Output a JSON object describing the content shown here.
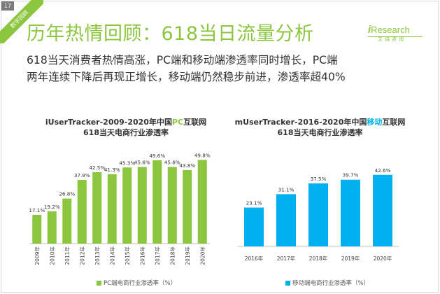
{
  "page": {
    "number": "17",
    "corner_tag": "数字回顾",
    "title": "历年热情回顾：618当日流量分析",
    "subtitle_lines": [
      "618当天消费者热情高涨，PC端和移动端渗透率同时增长，PC端",
      "两年连续下降后再现正增长，移动端仍然稳步前进，渗透率超40%"
    ]
  },
  "logo": {
    "text_prefix": "i",
    "text_main": "Research",
    "text_cn": "艾瑞咨询"
  },
  "colors": {
    "green": "#8cc63f",
    "blue": "#00b0f0",
    "title_green": "#8cc63f"
  },
  "chart_data": [
    {
      "type": "bar",
      "title_line1_prefix": "iUserTracker-2009-2020年中国",
      "title_line1_highlight": "PC",
      "title_line1_suffix": "互联网",
      "title_line2": "618当天电商行业渗透率",
      "categories": [
        "2009年",
        "2010年",
        "2011年",
        "2012年",
        "2013年",
        "2014年",
        "2015年",
        "2016年",
        "2017年",
        "2018年",
        "2019年",
        "2020年"
      ],
      "values": [
        17.1,
        19.2,
        26.8,
        37.9,
        42.5,
        41.3,
        45.3,
        45.6,
        49.6,
        45.6,
        43.8,
        49.8
      ],
      "labels": [
        "17.1%",
        "19.2%",
        "26.8%",
        "37.9%",
        "42.5%",
        "41.3%",
        "45.3%",
        "45.6%",
        "49.6%",
        "45.6%",
        "43.8%",
        "49.8%"
      ],
      "series_name": "PC端电商行业渗透率（%）",
      "color": "#8cc63f",
      "grid": false,
      "legend_position": "bottom"
    },
    {
      "type": "bar",
      "title_line1_prefix": "mUserTracker-2016-2020年中国",
      "title_line1_highlight": "移动",
      "title_line1_suffix": "互联网",
      "title_line2": "618当天电商行业渗透率",
      "categories": [
        "2016年",
        "2017年",
        "2018年",
        "2019年",
        "2020年"
      ],
      "values": [
        23.1,
        31.1,
        37.5,
        39.7,
        42.6
      ],
      "labels": [
        "23.1%",
        "31.1%",
        "37.5%",
        "39.7%",
        "42.6%"
      ],
      "series_name": "移动端电商行业渗透率（%）",
      "color": "#00b0f0",
      "grid": false,
      "legend_position": "bottom"
    }
  ]
}
